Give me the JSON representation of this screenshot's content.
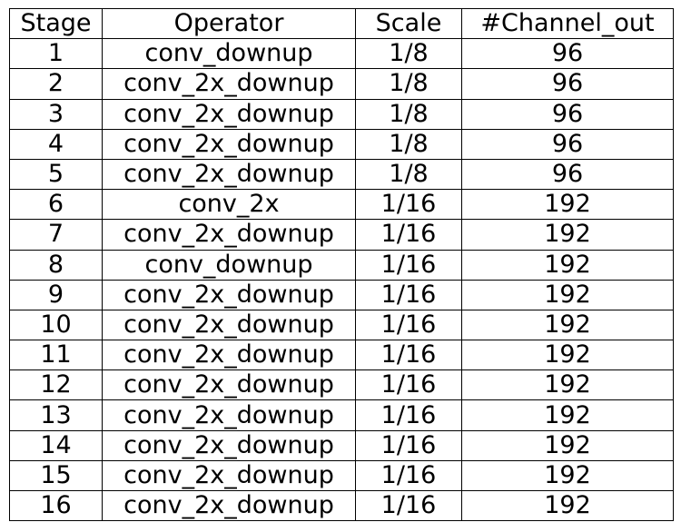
{
  "table": {
    "headers": [
      "Stage",
      "Operator",
      "Scale",
      "#Channel_out"
    ],
    "rows": [
      [
        "1",
        "conv_downup",
        "1/8",
        "96"
      ],
      [
        "2",
        "conv_2x_downup",
        "1/8",
        "96"
      ],
      [
        "3",
        "conv_2x_downup",
        "1/8",
        "96"
      ],
      [
        "4",
        "conv_2x_downup",
        "1/8",
        "96"
      ],
      [
        "5",
        "conv_2x_downup",
        "1/8",
        "96"
      ],
      [
        "6",
        "conv_2x",
        "1/16",
        "192"
      ],
      [
        "7",
        "conv_2x_downup",
        "1/16",
        "192"
      ],
      [
        "8",
        "conv_downup",
        "1/16",
        "192"
      ],
      [
        "9",
        "conv_2x_downup",
        "1/16",
        "192"
      ],
      [
        "10",
        "conv_2x_downup",
        "1/16",
        "192"
      ],
      [
        "11",
        "conv_2x_downup",
        "1/16",
        "192"
      ],
      [
        "12",
        "conv_2x_downup",
        "1/16",
        "192"
      ],
      [
        "13",
        "conv_2x_downup",
        "1/16",
        "192"
      ],
      [
        "14",
        "conv_2x_downup",
        "1/16",
        "192"
      ],
      [
        "15",
        "conv_2x_downup",
        "1/16",
        "192"
      ],
      [
        "16",
        "conv_2x_downup",
        "1/16",
        "192"
      ]
    ]
  }
}
